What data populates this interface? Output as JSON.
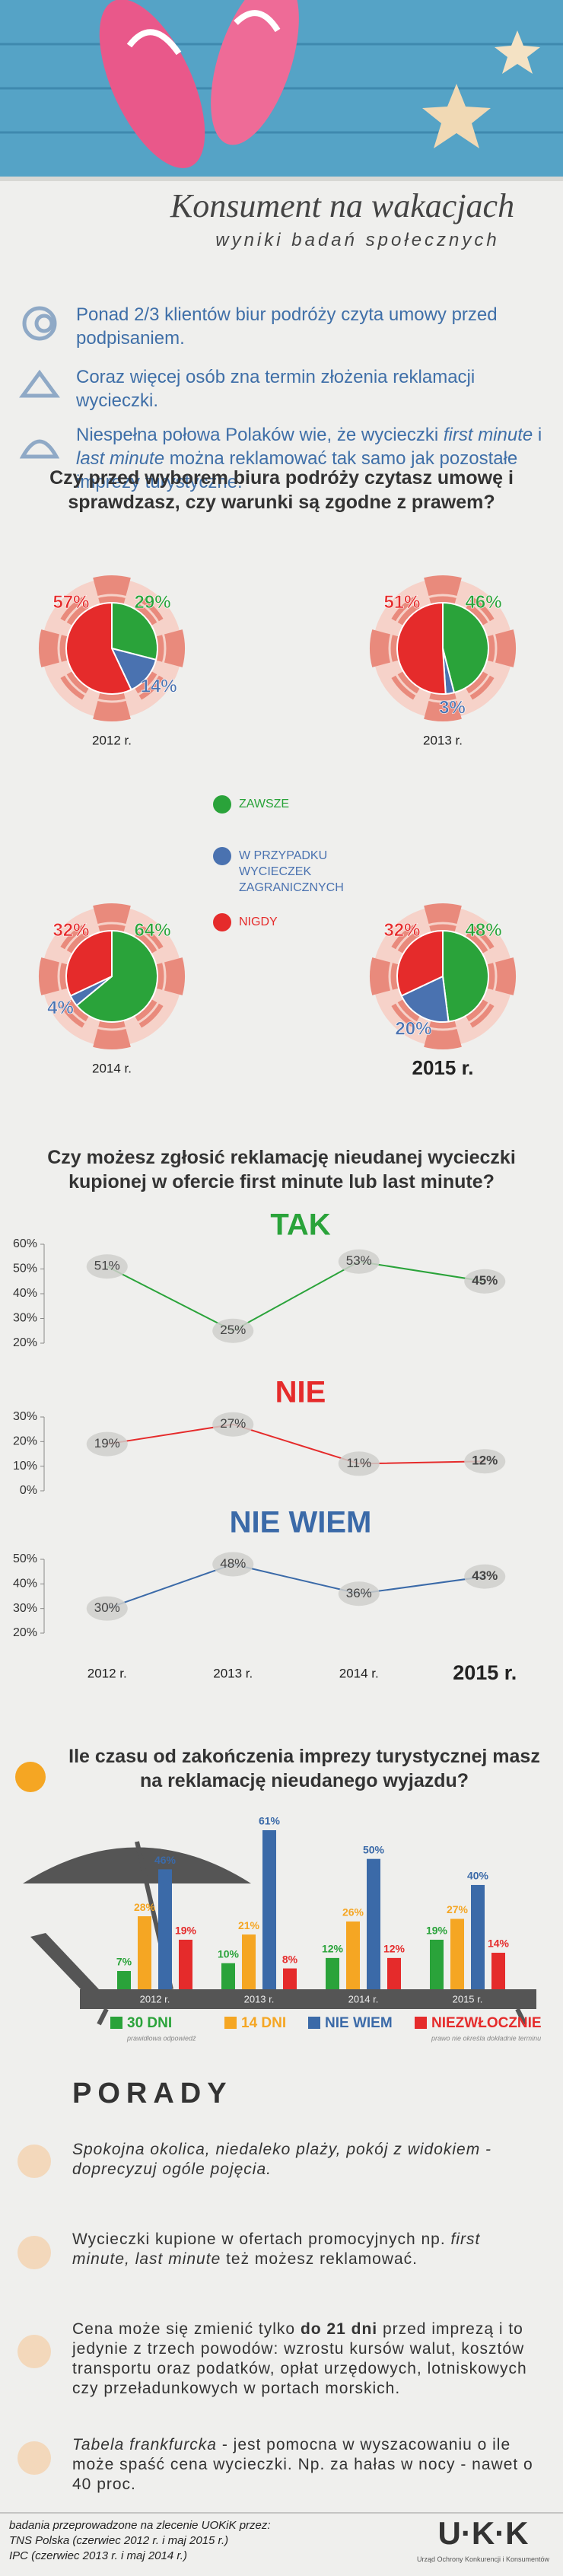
{
  "header": {
    "title": "Konsument na wakacjach",
    "subtitle": "wyniki badań społecznych"
  },
  "facts": [
    [
      {
        "text": "Ponad 2/3 klientów biur podróży czyta umowy przed podpisaniem."
      }
    ],
    [
      {
        "text": "Coraz więcej osób zna termin złożenia reklamacji wycieczki."
      }
    ],
    [
      {
        "text": "Niespełna połowa Polaków wie, że wycieczki "
      },
      {
        "text": "first minute",
        "style": "italic"
      },
      {
        "text": " i "
      },
      {
        "text": "last minute",
        "style": "italic"
      },
      {
        "text": " można reklamować tak samo jak pozostałe imprezy turystyczne."
      }
    ]
  ],
  "chart_data": [
    {
      "type": "pie",
      "title": "Czy przed wyborem biura podróży czytasz umowę i sprawdzasz, czy warunki są zgodne z prawem?",
      "categories": [
        "2012 r.",
        "2013 r.",
        "2014 r.",
        "2015 r."
      ],
      "series": [
        {
          "name": "ZAWSZE",
          "color": "#2aa33a",
          "values": [
            29,
            46,
            64,
            48
          ],
          "value_labels": [
            "29%",
            "46%",
            "64%",
            "48%"
          ]
        },
        {
          "name": "W PRZYPADKU WYCIECZEK ZAGRANICZNYCH",
          "color": "#4a72b0",
          "values": [
            14,
            3,
            4,
            20
          ],
          "value_labels": [
            "14%",
            "3%",
            "4%",
            "20%"
          ]
        },
        {
          "name": "NIGDY",
          "color": "#e52b2b",
          "values": [
            57,
            51,
            32,
            32
          ],
          "value_labels": [
            "57%",
            "51%",
            "32%",
            "32%"
          ]
        }
      ]
    },
    {
      "type": "line",
      "title": "Czy możesz zgłosić reklamację nieudanej wycieczki kupionej w ofercie first minute lub last minute?",
      "series": [
        {
          "name": "TAK",
          "color": "#2aa33a",
          "values": [
            51,
            25,
            53,
            45
          ],
          "value_labels": [
            "51%",
            "25%",
            "53%",
            "45%"
          ]
        }
      ],
      "ylim": [
        20,
        60
      ],
      "yticks": [
        {
          "value": 20,
          "label": "20%"
        },
        {
          "value": 30,
          "label": "30%"
        },
        {
          "value": 40,
          "label": "40%"
        },
        {
          "value": 50,
          "label": "50%"
        },
        {
          "value": 60,
          "label": "60%"
        }
      ]
    },
    {
      "type": "line",
      "series": [
        {
          "name": "NIE",
          "color": "#e52b2b",
          "values": [
            19,
            27,
            11,
            12
          ],
          "value_labels": [
            "19%",
            "27%",
            "11%",
            "12%"
          ]
        }
      ],
      "ylim": [
        0,
        30
      ],
      "yticks": [
        {
          "value": 0,
          "label": "0%"
        },
        {
          "value": 10,
          "label": "10%"
        },
        {
          "value": 20,
          "label": "20%"
        },
        {
          "value": 30,
          "label": "30%"
        }
      ]
    },
    {
      "type": "line",
      "categories": [
        "2012 r.",
        "2013 r.",
        "2014 r.",
        "2015 r."
      ],
      "series": [
        {
          "name": "NIE WIEM",
          "color": "#3b6aa8",
          "values": [
            30,
            48,
            36,
            43
          ],
          "value_labels": [
            "30%",
            "48%",
            "36%",
            "43%"
          ]
        }
      ],
      "ylim": [
        20,
        50
      ],
      "yticks": [
        {
          "value": 20,
          "label": "20%"
        },
        {
          "value": 30,
          "label": "30%"
        },
        {
          "value": 40,
          "label": "40%"
        },
        {
          "value": 50,
          "label": "50%"
        }
      ]
    },
    {
      "type": "bar",
      "title": "Ile czasu od zakończenia imprezy turystycznej masz na reklamację nieudanego wyjazdu?",
      "categories": [
        "2012 r.",
        "2013 r.",
        "2014 r.",
        "2015 r."
      ],
      "series": [
        {
          "name": "30 DNI",
          "note": "prawidłowa odpowiedź",
          "color": "#2aa33a",
          "values": [
            7,
            10,
            12,
            19
          ],
          "value_labels": [
            "7%",
            "10%",
            "12%",
            "19%"
          ]
        },
        {
          "name": "14 DNI",
          "color": "#f5a623",
          "values": [
            28,
            21,
            26,
            27
          ],
          "value_labels": [
            "28%",
            "21%",
            "26%",
            "27%"
          ]
        },
        {
          "name": "NIE WIEM",
          "color": "#3b6aa8",
          "values": [
            46,
            61,
            50,
            40
          ],
          "value_labels": [
            "46%",
            "61%",
            "50%",
            "40%"
          ]
        },
        {
          "name": "NIEZWŁOCZNIE",
          "note": "prawo nie określa dokładnie terminu",
          "color": "#e52b2b",
          "values": [
            19,
            8,
            12,
            14
          ],
          "value_labels": [
            "19%",
            "8%",
            "12%",
            "14%"
          ]
        }
      ]
    }
  ],
  "tips": {
    "title": "PORADY",
    "items": [
      [
        {
          "text": "Spokojna okolica, niedaleko plaży, pokój z widokiem - doprecyzuj ogóle pojęcia.",
          "style": "italic"
        }
      ],
      [
        {
          "text": "Wycieczki kupione w ofertach promocyjnych np. "
        },
        {
          "text": "first minute, last minute",
          "style": "italic"
        },
        {
          "text": " też możesz reklamować."
        }
      ],
      [
        {
          "text": "Cena może się zmienić tylko "
        },
        {
          "text": "do 21 dni",
          "style": "bold"
        },
        {
          "text": " przed imprezą i to jedynie z trzech powodów: wzrostu kursów walut, kosztów transportu oraz podatków, opłat urzędowych, lotniskowych czy przeładunkowych w portach morskich."
        }
      ],
      [
        {
          "text": "Tabela frankfurcka",
          "style": "italic"
        },
        {
          "text": " - jest pomocna w wyszacowaniu o ile może spaść cena wycieczki. Np. za hałas w nocy - nawet o 40 proc."
        }
      ]
    ]
  },
  "footer": {
    "lines": [
      "badania przeprowadzone na zlecenie UOKiK przez:",
      "TNS Polska (czerwiec 2012 r. i maj 2015 r.)",
      "IPC (czerwiec 2013 r. i maj 2014 r.)"
    ],
    "logo": "U·K·K",
    "logo_caption": "Urząd Ochrony Konkurencji i Konsumentów"
  }
}
